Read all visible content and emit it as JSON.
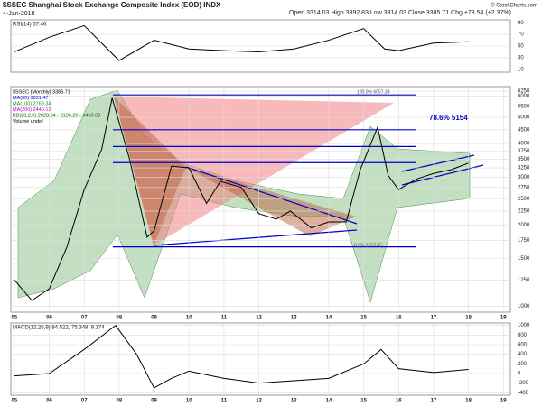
{
  "header": {
    "title": "$SSEC Shanghai Stock Exchange Composite Index (EOD) INDX",
    "date": "4-Jan-2018",
    "quote": "Open 3314.03  High 3392.83  Low 3314.03  Close 3385.71  Chg +78.54 (+2.37%)",
    "source": "© StockCharts.com"
  },
  "chart_data": [
    {
      "type": "line",
      "title": "RSI(14) 57.46",
      "color": "#000000",
      "fill": "#a0a0a0",
      "x": [
        2005,
        2006,
        2007,
        2008,
        2009,
        2010,
        2011,
        2012,
        2013,
        2014,
        2015,
        2015.6,
        2016,
        2017,
        2018
      ],
      "values": [
        40,
        65,
        85,
        25,
        60,
        45,
        42,
        40,
        45,
        60,
        80,
        45,
        42,
        55,
        57.46
      ],
      "xlim": [
        2004.9,
        2019.2
      ],
      "ylim": [
        5,
        95
      ],
      "yticks": [
        10,
        30,
        50,
        70,
        90
      ]
    },
    {
      "type": "line",
      "log": true,
      "color": "#000000",
      "legend": [
        "$SSEC (Monthly) 3385.71",
        "MA(50) 3031.47",
        "MA(100) 2769.34",
        "MA(200) 2440.12",
        "BB(20,2.0) 2928.84 - 3196.26 - 3463.68",
        "Volume undef"
      ],
      "legend_colors": [
        "#000000",
        "#0000cc",
        "#009900",
        "#cc00cc",
        "#006600",
        "#000000"
      ],
      "x": [
        2005,
        2005.5,
        2006,
        2006.5,
        2007,
        2007.5,
        2007.8,
        2008.3,
        2008.8,
        2009,
        2009.5,
        2010,
        2010.5,
        2010.9,
        2011.5,
        2012,
        2012.5,
        2012.9,
        2013.5,
        2014,
        2014.5,
        2014.9,
        2015.4,
        2015.7,
        2016,
        2016.5,
        2017,
        2017.5,
        2018
      ],
      "values": [
        1250,
        1050,
        1160,
        1650,
        2700,
        3800,
        5900,
        3500,
        1800,
        1900,
        3300,
        3250,
        2400,
        2900,
        2750,
        2200,
        2100,
        2250,
        1950,
        2050,
        2050,
        3200,
        4600,
        3050,
        2700,
        2950,
        3100,
        3200,
        3385.71
      ],
      "levels": [
        6057.34,
        4500,
        3900,
        3400,
        1657.35
      ],
      "level_color": "#0000cc",
      "annotations": [
        "78.6%  5154",
        "100.0% 6057.34",
        "0.0% 1657.35"
      ],
      "xlim": [
        2004.9,
        2019.2
      ],
      "ylim": [
        950,
        6500
      ],
      "yticks": [
        1000,
        1250,
        1500,
        1750,
        2000,
        2250,
        2500,
        2750,
        3000,
        3250,
        3500,
        3750,
        4000,
        4500,
        5000,
        5500,
        6000,
        6250
      ],
      "xticks": [
        {
          "value": 2005,
          "label": "05"
        },
        {
          "value": 2006,
          "label": "06"
        },
        {
          "value": 2007,
          "label": "07"
        },
        {
          "value": 2008,
          "label": "08"
        },
        {
          "value": 2009,
          "label": "09"
        },
        {
          "value": 2010,
          "label": "10"
        },
        {
          "value": 2011,
          "label": "11"
        },
        {
          "value": 2012,
          "label": "12"
        },
        {
          "value": 2013,
          "label": "13"
        },
        {
          "value": 2014,
          "label": "14"
        },
        {
          "value": 2015,
          "label": "15"
        },
        {
          "value": 2016,
          "label": "16"
        },
        {
          "value": 2017,
          "label": "17"
        },
        {
          "value": 2018,
          "label": "18"
        },
        {
          "value": 2019,
          "label": "19"
        }
      ]
    },
    {
      "type": "line",
      "title": "MACD(12,26,9) 84.522, 75.348, 9.174",
      "color": "#000000",
      "x": [
        2005,
        2006,
        2007,
        2007.9,
        2008.5,
        2009,
        2009.5,
        2010,
        2011,
        2012,
        2013,
        2014,
        2015,
        2015.5,
        2016,
        2017,
        2018
      ],
      "values": [
        -50,
        0,
        500,
        1000,
        400,
        -300,
        -100,
        50,
        -100,
        -200,
        -150,
        -100,
        200,
        500,
        100,
        20,
        84.522
      ],
      "xlim": [
        2004.9,
        2019.2
      ],
      "ylim": [
        -450,
        1050
      ],
      "yticks": [
        -400,
        -200,
        0,
        200,
        400,
        600,
        800,
        1000
      ],
      "xticks": [
        {
          "value": 2005,
          "label": "05"
        },
        {
          "value": 2006,
          "label": "06"
        },
        {
          "value": 2007,
          "label": "07"
        },
        {
          "value": 2008,
          "label": "08"
        },
        {
          "value": 2009,
          "label": "09"
        },
        {
          "value": 2010,
          "label": "10"
        },
        {
          "value": 2011,
          "label": "11"
        },
        {
          "value": 2012,
          "label": "12"
        },
        {
          "value": 2013,
          "label": "13"
        },
        {
          "value": 2014,
          "label": "14"
        },
        {
          "value": 2015,
          "label": "15"
        },
        {
          "value": 2016,
          "label": "16"
        },
        {
          "value": 2017,
          "label": "17"
        },
        {
          "value": 2018,
          "label": "18"
        },
        {
          "value": 2019,
          "label": "19"
        }
      ]
    }
  ]
}
